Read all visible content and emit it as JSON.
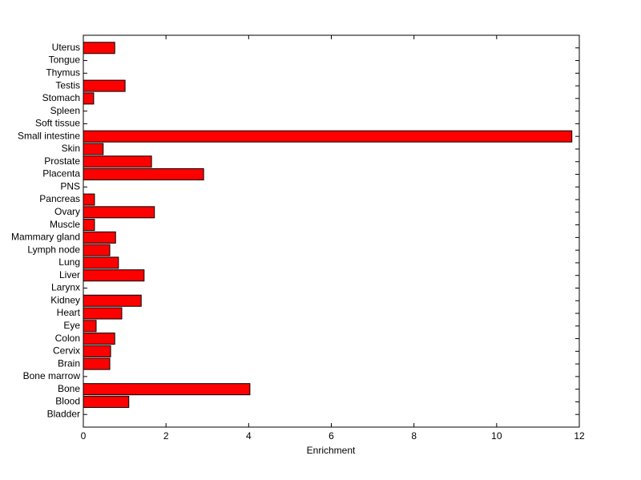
{
  "chart_data": {
    "type": "barh",
    "xlabel": "Enrichment",
    "categories": [
      "Bladder",
      "Blood",
      "Bone",
      "Bone marrow",
      "Brain",
      "Cervix",
      "Colon",
      "Eye",
      "Heart",
      "Kidney",
      "Larynx",
      "Liver",
      "Lung",
      "Lymph node",
      "Mammary gland",
      "Muscle",
      "Ovary",
      "Pancreas",
      "PNS",
      "Placenta",
      "Prostate",
      "Skin",
      "Small intestine",
      "Soft tissue",
      "Spleen",
      "Stomach",
      "Testis",
      "Thymus",
      "Tongue",
      "Uterus"
    ],
    "values": [
      0,
      1.1,
      4.03,
      0,
      0.64,
      0.66,
      0.76,
      0.31,
      0.93,
      1.4,
      0,
      1.47,
      0.85,
      0.64,
      0.78,
      0.27,
      1.72,
      0.27,
      0,
      2.91,
      1.65,
      0.48,
      11.82,
      0,
      0,
      0.25,
      1.01,
      0,
      0,
      0.76
    ],
    "color": "#ff0000",
    "xlim": [
      0,
      12
    ],
    "xticks": [
      0,
      2,
      4,
      6,
      8,
      10,
      12
    ]
  }
}
